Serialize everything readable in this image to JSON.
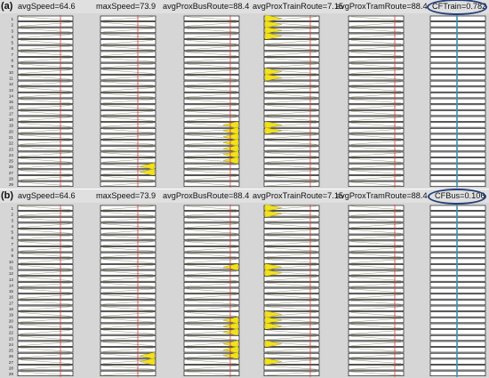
{
  "chart_data": [
    {
      "type": "table",
      "panel_label": "(a)",
      "row_labels": [
        "1",
        "2",
        "3",
        "4",
        "5",
        "6",
        "7",
        "8",
        "9",
        "10",
        "11",
        "12",
        "13",
        "14",
        "15",
        "16",
        "17",
        "18",
        "19",
        "20",
        "21",
        "22",
        "23",
        "24",
        "25",
        "26",
        "27",
        "28",
        "29"
      ],
      "columns": [
        {
          "label": "avgSpeed=64.6",
          "marker": "red",
          "highlight": []
        },
        {
          "label": "maxSpeed=73.9",
          "marker": "red",
          "highlight": [
            26,
            27
          ]
        },
        {
          "label": "avgProxBusRoute=88.4",
          "marker": "red",
          "highlight": [
            19,
            20,
            21,
            22,
            23,
            24,
            25
          ]
        },
        {
          "label": "avgProxTrainRoute=7.15",
          "marker": "red",
          "highlight": [
            1,
            2,
            3,
            4,
            10,
            11,
            19,
            20
          ]
        },
        {
          "label": "avgProxTramRoute=88.4",
          "marker": "red",
          "highlight": []
        },
        {
          "label": "CFTrain=0.782",
          "marker": "blue",
          "highlight": [],
          "circled": true
        }
      ]
    },
    {
      "type": "table",
      "panel_label": "(b)",
      "row_labels": [
        "1",
        "2",
        "3",
        "4",
        "5",
        "6",
        "7",
        "8",
        "9",
        "10",
        "11",
        "12",
        "13",
        "14",
        "15",
        "16",
        "17",
        "18",
        "19",
        "20",
        "21",
        "22",
        "23",
        "24",
        "25",
        "26",
        "27",
        "28",
        "29"
      ],
      "columns": [
        {
          "label": "avgSpeed=64.6",
          "marker": "red",
          "highlight": []
        },
        {
          "label": "maxSpeed=73.9",
          "marker": "red",
          "highlight": [
            26,
            27
          ]
        },
        {
          "label": "avgProxBusRoute=88.4",
          "marker": "red",
          "highlight": [
            11,
            20,
            21,
            22,
            24,
            25,
            26
          ]
        },
        {
          "label": "avgProxTrainRoute=7.15",
          "marker": "red",
          "highlight": [
            1,
            2,
            11,
            12,
            19,
            20,
            21,
            24,
            27
          ]
        },
        {
          "label": "avgProxTramRoute=88.4",
          "marker": "red",
          "highlight": []
        },
        {
          "label": "CFBus=0.106",
          "marker": "blue",
          "highlight": [],
          "circled": true
        }
      ]
    }
  ]
}
